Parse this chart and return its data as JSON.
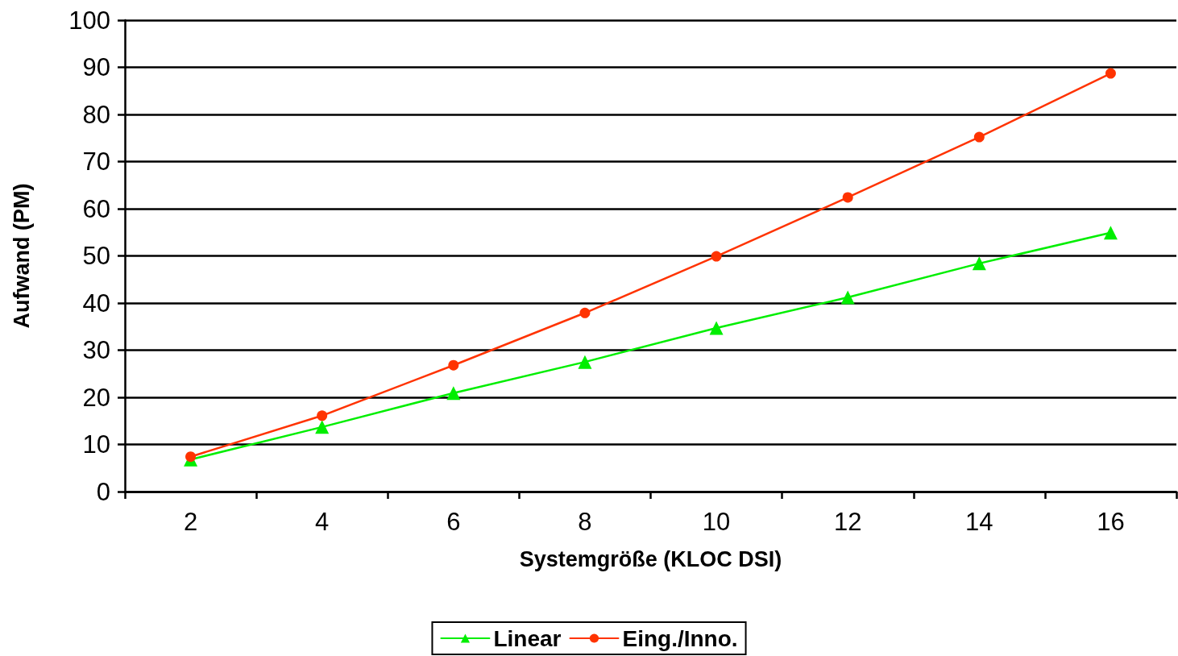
{
  "chart_data": {
    "type": "line",
    "xlabel": "Systemgröße (KLOC DSI)",
    "ylabel": "Aufwand (PM)",
    "categories": [
      "2",
      "4",
      "6",
      "8",
      "10",
      "12",
      "14",
      "16"
    ],
    "series": [
      {
        "name": "Linear",
        "color": "#00ee00",
        "marker": "triangle",
        "values": [
          6.8,
          13.7,
          20.9,
          27.5,
          34.7,
          41.2,
          48.4,
          54.9
        ]
      },
      {
        "name": "Eing./Inno.",
        "color": "#ff3300",
        "marker": "circle",
        "values": [
          7.4,
          16.1,
          26.8,
          37.9,
          49.9,
          62.4,
          75.2,
          88.7
        ]
      }
    ],
    "ylim": [
      0,
      100
    ],
    "yticks": [
      0,
      10,
      20,
      30,
      40,
      50,
      60,
      70,
      80,
      90,
      100
    ],
    "grid": "y",
    "legend": "bottom",
    "line_style": "solid"
  }
}
